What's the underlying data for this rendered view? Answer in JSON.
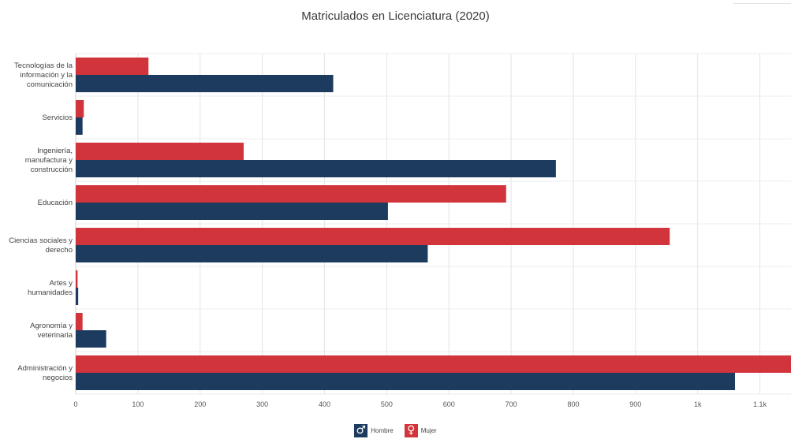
{
  "chart_data": {
    "type": "bar",
    "orientation": "horizontal",
    "title": "Matriculados en Licenciatura (2020)",
    "xlabel": "",
    "ylabel": "",
    "categories": [
      [
        "Tecnologías de la",
        "información y la",
        "comunicación"
      ],
      [
        "Servicios"
      ],
      [
        "Ingeniería,",
        "manufactura y",
        "construcción"
      ],
      [
        "Educación"
      ],
      [
        "Ciencias sociales y",
        "derecho"
      ],
      [
        "Artes y",
        "humanidades"
      ],
      [
        "Agronomía y",
        "veterinaria"
      ],
      [
        "Administración y",
        "negocios"
      ]
    ],
    "series": [
      {
        "name": "Mujer",
        "color": "#d1343a",
        "values": [
          117,
          13,
          270,
          692,
          955,
          3,
          11,
          1150
        ]
      },
      {
        "name": "Hombre",
        "color": "#1c3b5f",
        "values": [
          414,
          11,
          772,
          502,
          566,
          4,
          49,
          1060
        ]
      }
    ],
    "xlim": [
      0,
      1150
    ],
    "xticks": [
      0,
      100,
      200,
      300,
      400,
      500,
      600,
      700,
      800,
      900,
      1000,
      1100
    ],
    "xtick_labels": [
      "0",
      "100",
      "200",
      "300",
      "400",
      "500",
      "600",
      "700",
      "800",
      "900",
      "1k",
      "1.1k"
    ],
    "grid": true,
    "legend_position": "bottom-center"
  },
  "legend": {
    "hombre_label": "Hombre",
    "mujer_label": "Mujer",
    "hombre_icon": "male-symbol-icon",
    "mujer_icon": "female-symbol-icon"
  }
}
